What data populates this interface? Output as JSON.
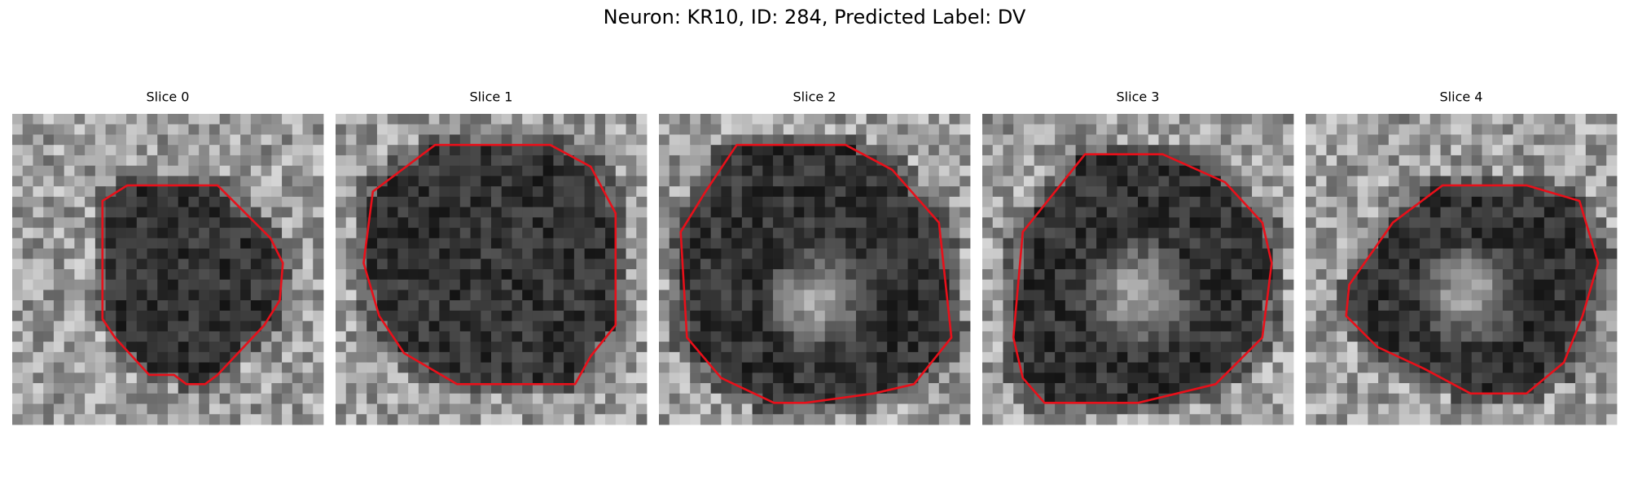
{
  "title": "Neuron: KR10, ID: 284, Predicted Label: DV",
  "panels": [
    {
      "title": "Slice 0"
    },
    {
      "title": "Slice 1"
    },
    {
      "title": "Slice 2"
    },
    {
      "title": "Slice 3"
    },
    {
      "title": "Slice 4"
    }
  ]
}
